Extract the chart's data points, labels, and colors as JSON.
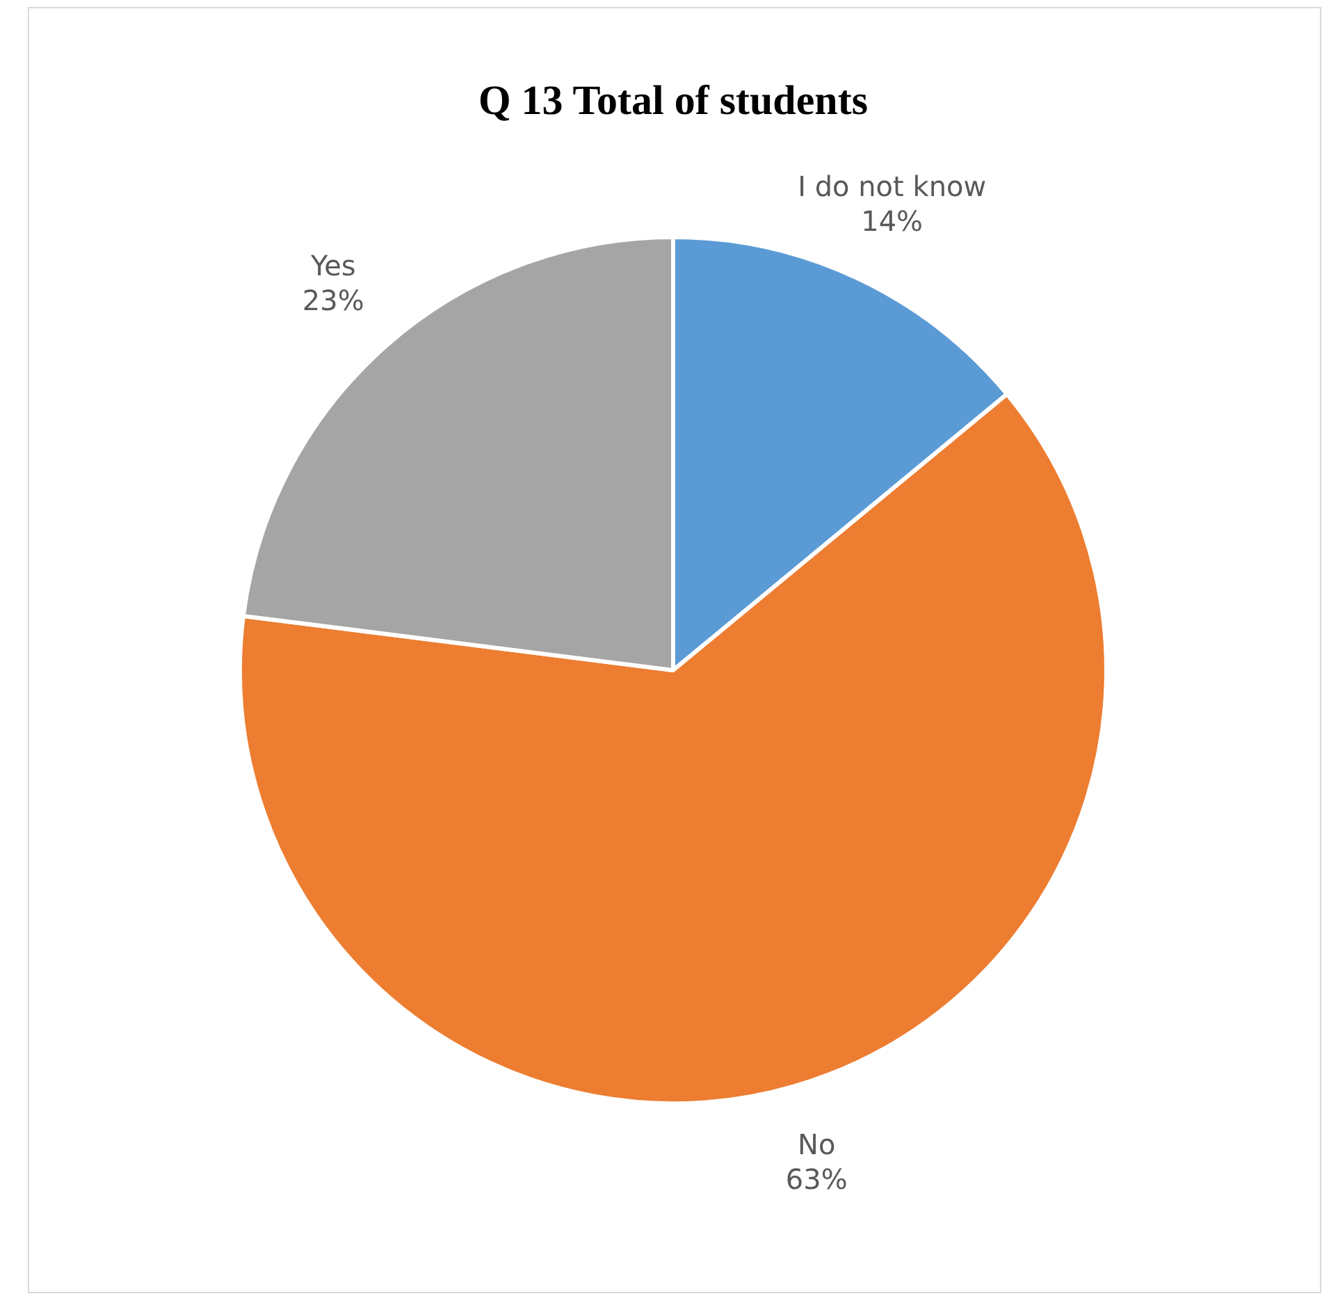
{
  "chart_data": {
    "type": "pie",
    "title": "Q 13 Total of students",
    "categories": [
      "I do not know",
      "No",
      "Yes"
    ],
    "values": [
      14,
      63,
      23
    ],
    "colors": [
      "#5b9bd5",
      "#ed7d31",
      "#a5a5a5"
    ],
    "value_labels": [
      "14%",
      "63%",
      "23%"
    ],
    "legend": false
  }
}
